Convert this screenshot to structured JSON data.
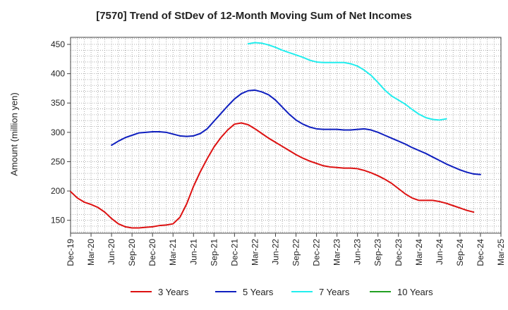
{
  "chart_data": {
    "type": "line",
    "title": "[7570]  Trend of StDev of 12-Month Moving Sum of Net Incomes",
    "xlabel": "",
    "ylabel": "Amount (million yen)",
    "ylim": [
      128,
      462
    ],
    "yticks": [
      150,
      200,
      250,
      300,
      350,
      400,
      450
    ],
    "xticks": [
      "Dec-19",
      "Mar-20",
      "Jun-20",
      "Sep-20",
      "Dec-20",
      "Mar-21",
      "Jun-21",
      "Sep-21",
      "Dec-21",
      "Mar-22",
      "Jun-22",
      "Sep-22",
      "Dec-22",
      "Mar-23",
      "Jun-23",
      "Sep-23",
      "Dec-23",
      "Mar-24",
      "Jun-24",
      "Sep-24",
      "Dec-24",
      "Mar-25"
    ],
    "grid": true,
    "legend_position": "bottom",
    "series": [
      {
        "name": "3 Years",
        "color": "#dd1111",
        "start_index": 0,
        "values": [
          199,
          188,
          181,
          177,
          172,
          164,
          153,
          144,
          139,
          137,
          137,
          138,
          139,
          141,
          142,
          144,
          155,
          178,
          208,
          233,
          255,
          275,
          291,
          304,
          314,
          316,
          313,
          306,
          298,
          290,
          283,
          276,
          269,
          262,
          256,
          251,
          247,
          243,
          241,
          240,
          239,
          239,
          238,
          235,
          231,
          226,
          220,
          213,
          204,
          195,
          188,
          184,
          184,
          184,
          182,
          179,
          175,
          171,
          167,
          164
        ]
      },
      {
        "name": "5 Years",
        "color": "#0f1fbf",
        "start_index": 6,
        "values": [
          278,
          285,
          291,
          295,
          299,
          300,
          301,
          301,
          300,
          297,
          294,
          293,
          294,
          298,
          306,
          319,
          332,
          345,
          357,
          366,
          371,
          372,
          369,
          364,
          355,
          343,
          331,
          321,
          314,
          309,
          306,
          305,
          305,
          305,
          304,
          304,
          305,
          306,
          304,
          300,
          295,
          290,
          285,
          280,
          274,
          269,
          264,
          258,
          252,
          246,
          241,
          236,
          232,
          229,
          228
        ]
      },
      {
        "name": "7 Years",
        "color": "#22eeee",
        "start_index": 26,
        "values": [
          451,
          453,
          452,
          449,
          445,
          440,
          436,
          432,
          428,
          423,
          420,
          419,
          419,
          419,
          419,
          417,
          413,
          406,
          397,
          385,
          372,
          362,
          355,
          348,
          339,
          331,
          325,
          322,
          321,
          323
        ]
      },
      {
        "name": "10 Years",
        "color": "#22a022",
        "start_index": 0,
        "values": []
      }
    ]
  }
}
